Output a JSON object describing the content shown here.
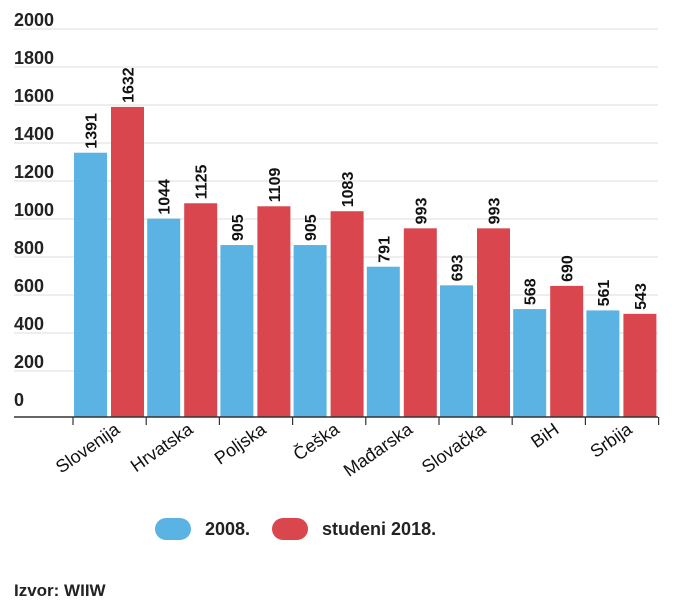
{
  "chart_data": {
    "type": "bar",
    "categories": [
      "Slovenija",
      "Hrvatska",
      "Poljska",
      "Češka",
      "Mađarska",
      "Slovačka",
      "BiH",
      "Srbija"
    ],
    "series": [
      {
        "name": "2008.",
        "color": "#5ab3e3",
        "values": [
          1391,
          1044,
          905,
          905,
          791,
          693,
          568,
          561
        ]
      },
      {
        "name": "studeni 2018.",
        "color": "#d9464e",
        "values": [
          1632,
          1125,
          1109,
          1083,
          993,
          993,
          690,
          543
        ]
      }
    ],
    "y_ticks": [
      "0",
      "200",
      "400",
      "600",
      "800",
      "1000",
      "1200",
      "1400",
      "1600",
      "1800",
      "2000"
    ],
    "ylim": [
      0,
      2000
    ],
    "grid": true,
    "legend_position": "bottom",
    "source": "Izvor: WIIW"
  }
}
